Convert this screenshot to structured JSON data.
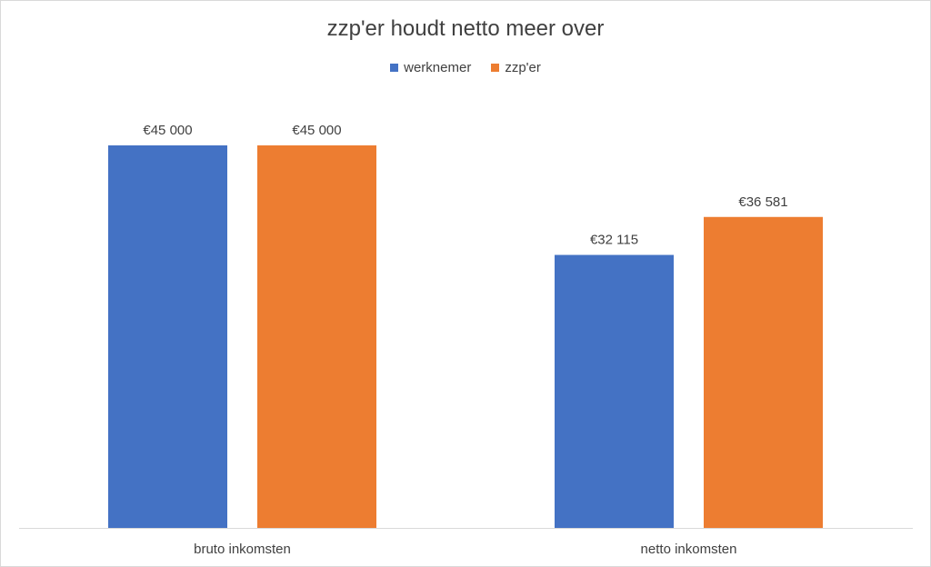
{
  "chart_data": {
    "type": "bar",
    "title": "zzp'er houdt netto meer over",
    "categories": [
      "bruto inkomsten",
      "netto inkomsten"
    ],
    "series": [
      {
        "name": "werknemer",
        "color": "#4472C4",
        "values": [
          45000,
          32115
        ],
        "labels": [
          "€45 000",
          "€32 115"
        ]
      },
      {
        "name": "zzp'er",
        "color": "#ED7D31",
        "values": [
          45000,
          36581
        ],
        "labels": [
          "€45 000",
          "€36 581"
        ]
      }
    ],
    "ylim": [
      0,
      50000
    ],
    "grid": false,
    "legend_position": "top"
  }
}
